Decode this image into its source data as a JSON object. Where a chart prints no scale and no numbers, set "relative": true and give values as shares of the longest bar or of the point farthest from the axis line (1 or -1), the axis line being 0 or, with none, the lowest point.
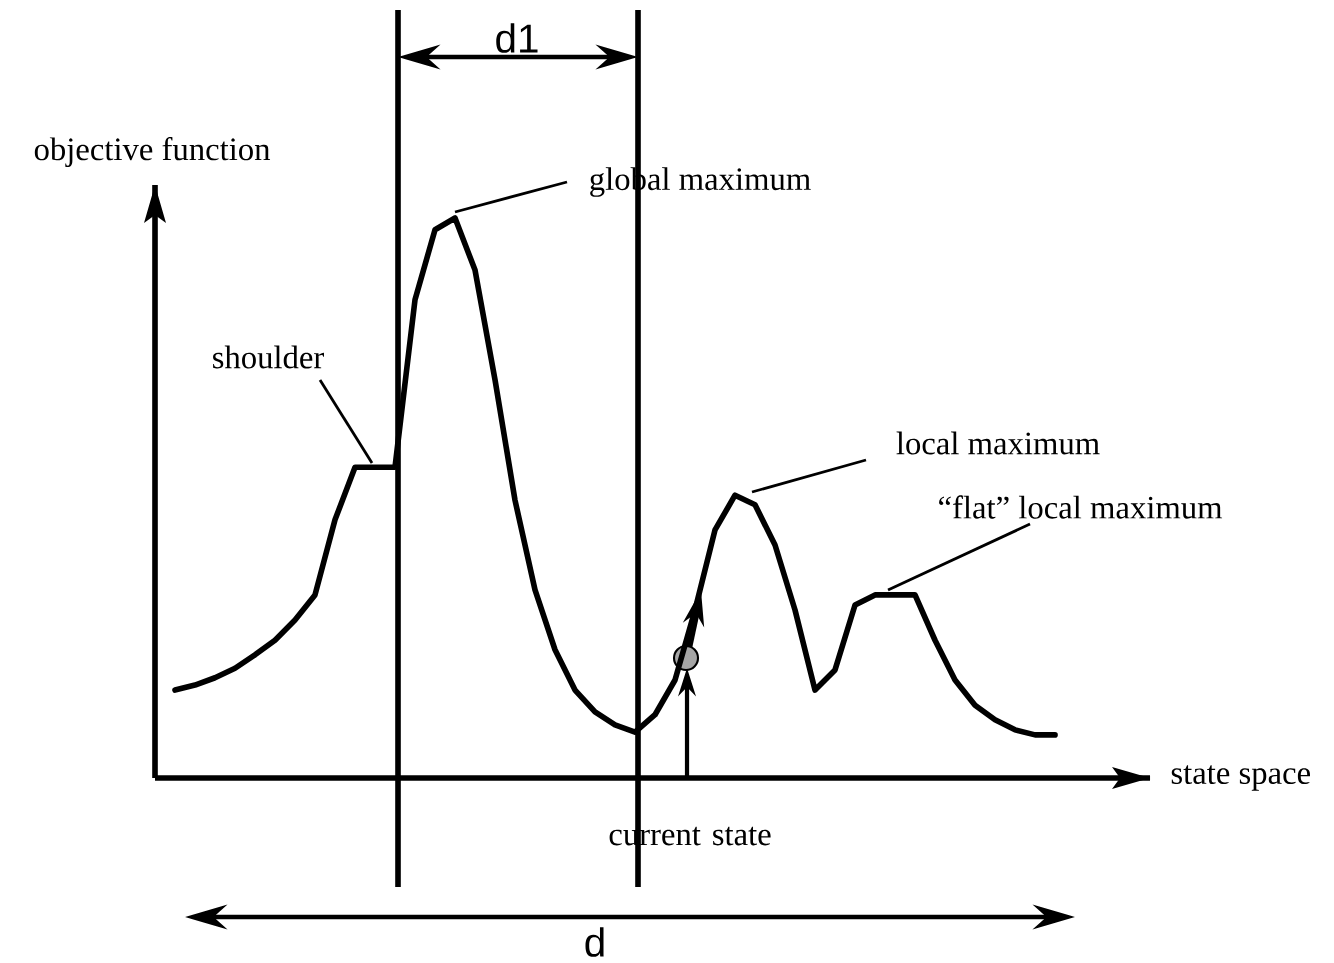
{
  "chart_data": {
    "type": "line",
    "relative": true,
    "color": "#000000",
    "xlabel": "state space",
    "ylabel": "objective function",
    "categories": [
      null,
      null,
      null,
      null,
      null,
      null,
      null,
      null,
      null,
      null,
      null,
      null,
      null,
      null,
      null,
      null,
      null,
      null,
      null,
      null,
      null,
      null,
      null,
      null,
      null,
      null,
      null,
      null,
      null,
      null,
      null,
      null,
      null,
      null,
      null,
      null,
      null,
      null,
      null,
      null,
      null,
      null,
      null,
      null,
      null
    ],
    "values": [
      0.157,
      0.166,
      0.179,
      0.196,
      0.22,
      0.246,
      0.282,
      0.327,
      0.461,
      0.555,
      0.555,
      0.555,
      0.854,
      0.979,
      1.0,
      0.907,
      0.711,
      0.496,
      0.336,
      0.229,
      0.157,
      0.118,
      0.095,
      0.082,
      0.113,
      0.175,
      0.3,
      0.443,
      0.505,
      0.488,
      0.416,
      0.3,
      0.157,
      0.193,
      0.309,
      0.327,
      0.327,
      0.327,
      0.246,
      0.175,
      0.13,
      0.104,
      0.086,
      0.077,
      0.077
    ],
    "annotations": [
      "global maximum",
      "shoulder",
      "local maximum",
      "“flat” local maximum",
      "current state",
      "d1",
      "d"
    ]
  }
}
